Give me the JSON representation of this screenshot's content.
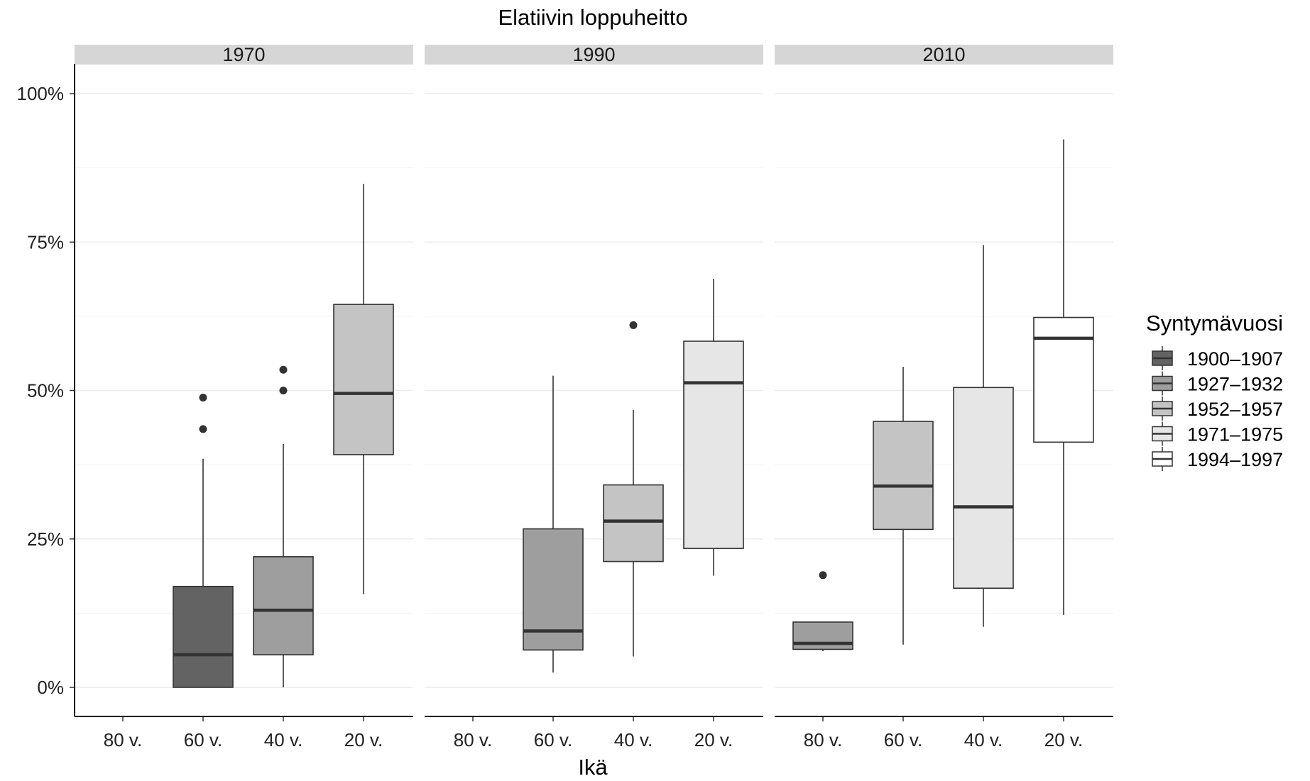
{
  "chart_data": {
    "type": "boxplot",
    "title": "Elatiivin loppuheitto",
    "xlabel": "Ikä",
    "ylabel": "",
    "ylim": [
      -0.05,
      1.05
    ],
    "y_ticks": [
      0,
      0.25,
      0.5,
      0.75,
      1.0
    ],
    "y_tick_labels": [
      "0%",
      "25%",
      "50%",
      "75%",
      "100%"
    ],
    "categories": [
      "80 v.",
      "60 v.",
      "40 v.",
      "20 v."
    ],
    "grid": "major and minor horizontal",
    "legend": {
      "title": "Syntymävuosi",
      "position": "right",
      "entries": [
        {
          "label": "1900–1907",
          "color": "#636363"
        },
        {
          "label": "1927–1932",
          "color": "#9e9e9e"
        },
        {
          "label": "1952–1957",
          "color": "#c4c4c4"
        },
        {
          "label": "1971–1975",
          "color": "#e6e6e6"
        },
        {
          "label": "1994–1997",
          "color": "#ffffff"
        }
      ]
    },
    "panels": [
      {
        "facet": "1970",
        "boxes": [
          {
            "category": "60 v.",
            "group": "1900–1907",
            "min": 0.0,
            "q1": 0.0,
            "median": 0.055,
            "q3": 0.17,
            "max": 0.385,
            "outliers": [
              0.435,
              0.488
            ]
          },
          {
            "category": "40 v.",
            "group": "1927–1932",
            "min": 0.0,
            "q1": 0.055,
            "median": 0.13,
            "q3": 0.22,
            "max": 0.41,
            "outliers": [
              0.5,
              0.535
            ]
          },
          {
            "category": "20 v.",
            "group": "1952–1957",
            "min": 0.157,
            "q1": 0.392,
            "median": 0.495,
            "q3": 0.645,
            "max": 0.848,
            "outliers": []
          }
        ]
      },
      {
        "facet": "1990",
        "boxes": [
          {
            "category": "60 v.",
            "group": "1927–1932",
            "min": 0.025,
            "q1": 0.063,
            "median": 0.095,
            "q3": 0.267,
            "max": 0.525,
            "outliers": []
          },
          {
            "category": "40 v.",
            "group": "1952–1957",
            "min": 0.052,
            "q1": 0.212,
            "median": 0.28,
            "q3": 0.341,
            "max": 0.467,
            "outliers": [
              0.61
            ]
          },
          {
            "category": "20 v.",
            "group": "1971–1975",
            "min": 0.188,
            "q1": 0.234,
            "median": 0.513,
            "q3": 0.583,
            "max": 0.688,
            "outliers": []
          }
        ]
      },
      {
        "facet": "2010",
        "boxes": [
          {
            "category": "80 v.",
            "group": "1927–1932",
            "min": 0.061,
            "q1": 0.064,
            "median": 0.074,
            "q3": 0.11,
            "max": 0.11,
            "outliers": [
              0.189
            ]
          },
          {
            "category": "60 v.",
            "group": "1952–1957",
            "min": 0.072,
            "q1": 0.266,
            "median": 0.339,
            "q3": 0.448,
            "max": 0.54,
            "outliers": []
          },
          {
            "category": "40 v.",
            "group": "1971–1975",
            "min": 0.102,
            "q1": 0.167,
            "median": 0.304,
            "q3": 0.505,
            "max": 0.745,
            "outliers": []
          },
          {
            "category": "20 v.",
            "group": "1994–1997",
            "min": 0.122,
            "q1": 0.413,
            "median": 0.588,
            "q3": 0.623,
            "max": 0.923,
            "outliers": []
          }
        ]
      }
    ]
  }
}
